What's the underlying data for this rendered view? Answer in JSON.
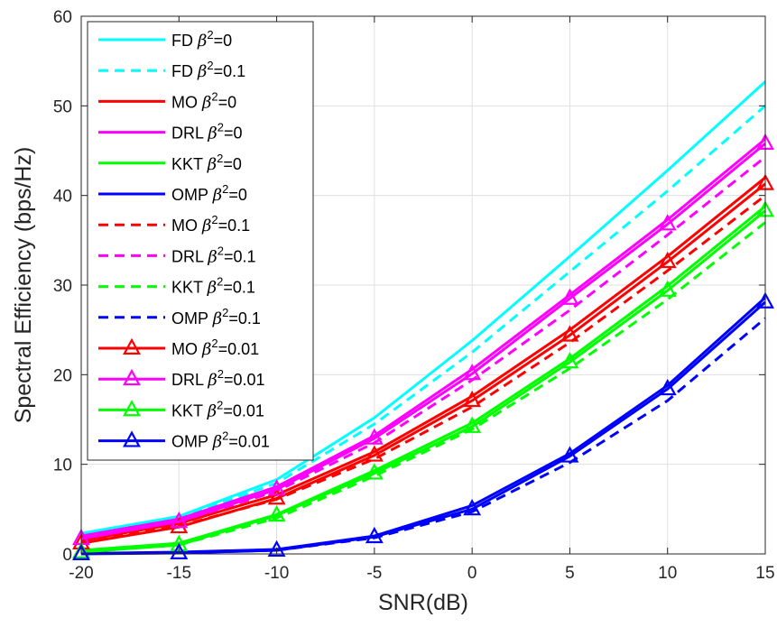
{
  "chart_data": {
    "type": "line",
    "xlabel": "SNR(dB)",
    "ylabel": "Spectral Efficiency (bps/Hz)",
    "xlim": [
      -20,
      15
    ],
    "ylim": [
      0,
      60
    ],
    "xticks": [
      -20,
      -15,
      -10,
      -5,
      0,
      5,
      10,
      15
    ],
    "yticks": [
      0,
      10,
      20,
      30,
      40,
      50,
      60
    ],
    "grid": true,
    "legend_position": "top-left",
    "x": [
      -20,
      -15,
      -10,
      -5,
      0,
      5,
      10,
      15
    ],
    "series": [
      {
        "name": "FD",
        "beta_value": "=0",
        "color": "#00FFFF",
        "style": "solid",
        "marker": "none",
        "values": [
          2.3,
          4.2,
          8.3,
          15.2,
          23.8,
          33.2,
          42.8,
          52.7
        ]
      },
      {
        "name": "FD",
        "beta_value": "=0.1",
        "color": "#00FFFF",
        "style": "dashed",
        "marker": "none",
        "values": [
          2.1,
          4.0,
          7.9,
          14.5,
          22.5,
          31.5,
          40.5,
          50.0
        ]
      },
      {
        "name": "MO",
        "beta_value": "=0",
        "color": "#FF0000",
        "style": "solid",
        "marker": "none",
        "values": [
          1.5,
          3.4,
          6.6,
          11.4,
          17.6,
          25.0,
          33.2,
          42.0
        ]
      },
      {
        "name": "DRL",
        "beta_value": "=0",
        "color": "#FF00FF",
        "style": "solid",
        "marker": "none",
        "values": [
          2.0,
          3.9,
          7.5,
          13.2,
          20.6,
          28.9,
          37.3,
          46.3
        ]
      },
      {
        "name": "KKT",
        "beta_value": "=0",
        "color": "#00FF00",
        "style": "solid",
        "marker": "none",
        "values": [
          0.4,
          1.2,
          4.4,
          9.3,
          14.6,
          21.8,
          29.9,
          38.8
        ]
      },
      {
        "name": "OMP",
        "beta_value": "=0",
        "color": "#0000FF",
        "style": "solid",
        "marker": "none",
        "values": [
          0.05,
          0.2,
          0.5,
          2.0,
          5.4,
          11.2,
          18.8,
          28.6
        ]
      },
      {
        "name": "MO",
        "beta_value": "=0.1",
        "color": "#FF0000",
        "style": "dashed",
        "marker": "none",
        "values": [
          1.3,
          3.1,
          6.1,
          10.6,
          16.4,
          23.6,
          31.6,
          40.0
        ]
      },
      {
        "name": "DRL",
        "beta_value": "=0.1",
        "color": "#FF00FF",
        "style": "dashed",
        "marker": "none",
        "values": [
          1.8,
          3.6,
          7.0,
          12.4,
          19.4,
          27.2,
          35.6,
          44.3
        ]
      },
      {
        "name": "KKT",
        "beta_value": "=0.1",
        "color": "#00FF00",
        "style": "dashed",
        "marker": "none",
        "values": [
          0.3,
          1.0,
          4.0,
          8.7,
          13.9,
          20.7,
          28.4,
          37.0
        ]
      },
      {
        "name": "OMP",
        "beta_value": "=0.1",
        "color": "#0000FF",
        "style": "dashed",
        "marker": "none",
        "values": [
          0.05,
          0.15,
          0.4,
          1.8,
          4.7,
          10.2,
          17.1,
          26.3
        ]
      },
      {
        "name": "MO",
        "beta_value": "=0.01",
        "color": "#FF0000",
        "style": "solid",
        "marker": "triangle",
        "values": [
          1.2,
          3.0,
          6.2,
          11.0,
          17.1,
          24.4,
          32.6,
          41.3
        ]
      },
      {
        "name": "DRL",
        "beta_value": "=0.01",
        "color": "#FF00FF",
        "style": "solid",
        "marker": "triangle",
        "values": [
          1.7,
          3.6,
          7.2,
          12.9,
          20.1,
          28.5,
          36.8,
          45.8
        ]
      },
      {
        "name": "KKT",
        "beta_value": "=0.01",
        "color": "#00FF00",
        "style": "solid",
        "marker": "triangle",
        "values": [
          0.2,
          1.0,
          4.3,
          9.0,
          14.2,
          21.4,
          29.4,
          38.3
        ]
      },
      {
        "name": "OMP",
        "beta_value": "=0.01",
        "color": "#0000FF",
        "style": "solid",
        "marker": "triangle",
        "values": [
          0.0,
          0.1,
          0.4,
          1.9,
          5.0,
          10.9,
          18.4,
          28.1
        ]
      }
    ],
    "beta_symbol": "β",
    "beta_exponent": "2"
  }
}
